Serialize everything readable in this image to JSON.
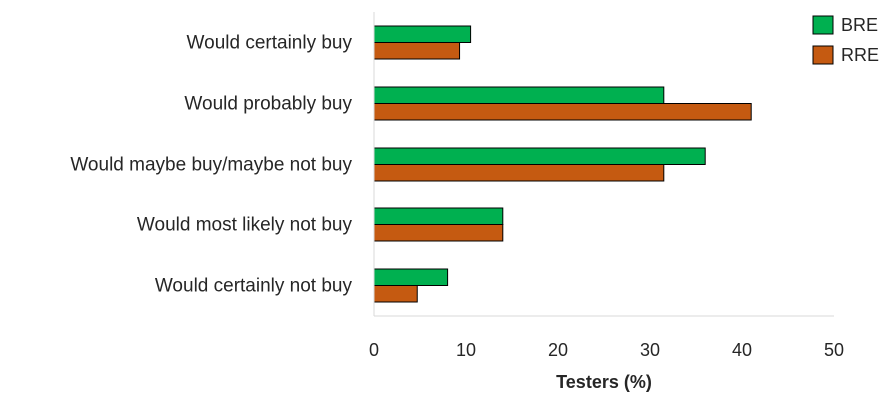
{
  "chart_data": {
    "type": "bar",
    "orientation": "horizontal",
    "categories": [
      "Would certainly buy",
      "Would probably buy",
      "Would maybe buy/maybe not buy",
      "Would most likely not buy",
      "Would certainly not buy"
    ],
    "series": [
      {
        "name": "BRE",
        "color": "#00b050",
        "values": [
          10.5,
          31.5,
          36,
          14,
          8
        ]
      },
      {
        "name": "RRE",
        "color": "#c55a11",
        "values": [
          9.3,
          41,
          31.5,
          14,
          4.7
        ]
      }
    ],
    "xlabel": "Testers (%)",
    "xlim": [
      0,
      50
    ],
    "xticks": [
      0,
      10,
      20,
      30,
      40,
      50
    ],
    "grid": false,
    "legend": "top-right"
  }
}
